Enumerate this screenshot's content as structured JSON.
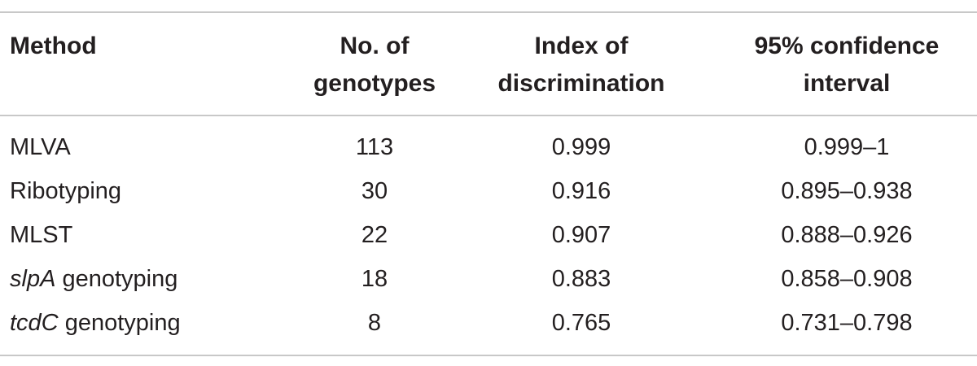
{
  "table": {
    "headers": {
      "method": "Method",
      "genotypes": "No. of\ngenotypes",
      "index": "Index of\ndiscrimination",
      "ci": "95% confidence\ninterval"
    },
    "rows": [
      {
        "gene": "",
        "method": "MLVA",
        "genotypes": "113",
        "index": "0.999",
        "ci": "0.999–1"
      },
      {
        "gene": "",
        "method": "Ribotyping",
        "genotypes": "30",
        "index": "0.916",
        "ci": "0.895–0.938"
      },
      {
        "gene": "",
        "method": "MLST",
        "genotypes": "22",
        "index": "0.907",
        "ci": "0.888–0.926"
      },
      {
        "gene": "slpA",
        "method": " genotyping",
        "genotypes": "18",
        "index": "0.883",
        "ci": "0.858–0.908"
      },
      {
        "gene": "tcdC",
        "method": " genotyping",
        "genotypes": "8",
        "index": "0.765",
        "ci": "0.731–0.798"
      }
    ]
  }
}
